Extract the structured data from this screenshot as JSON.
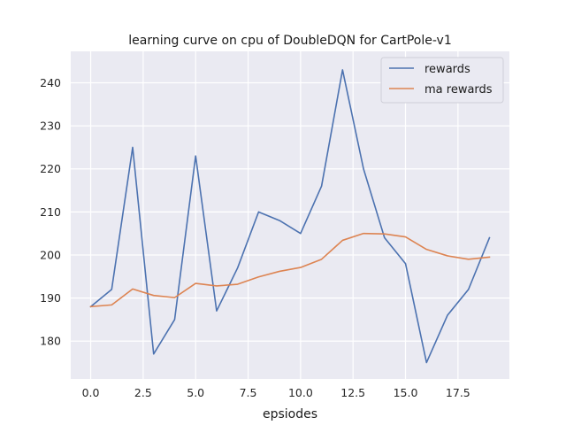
{
  "chart_data": {
    "type": "line",
    "title": "learning curve on cpu of DoubleDQN for CartPole-v1",
    "xlabel": "epsiodes",
    "ylabel": "",
    "x": [
      0,
      1,
      2,
      3,
      4,
      5,
      6,
      7,
      8,
      9,
      10,
      11,
      12,
      13,
      14,
      15,
      16,
      17,
      18,
      19
    ],
    "xlim": [
      -0.95,
      19.95
    ],
    "ylim": [
      171.2,
      247.3
    ],
    "xticks": [
      0.0,
      2.5,
      5.0,
      7.5,
      10.0,
      12.5,
      15.0,
      17.5
    ],
    "xtick_labels": [
      "0.0",
      "2.5",
      "5.0",
      "7.5",
      "10.0",
      "12.5",
      "15.0",
      "17.5"
    ],
    "yticks": [
      180,
      190,
      200,
      210,
      220,
      230,
      240
    ],
    "ytick_labels": [
      "180",
      "190",
      "200",
      "210",
      "220",
      "230",
      "240"
    ],
    "grid": true,
    "legend": "top-right",
    "series": [
      {
        "name": "rewards",
        "color": "#4c72b0",
        "values": [
          188,
          192,
          225,
          177,
          185,
          223,
          187,
          197,
          210,
          208,
          205,
          216,
          243,
          220,
          204,
          198,
          175,
          186,
          192,
          204
        ]
      },
      {
        "name": "ma rewards",
        "color": "#dd8452",
        "values": [
          188,
          188.4,
          192.1,
          190.6,
          190.1,
          193.4,
          192.8,
          193.2,
          194.9,
          196.2,
          197.1,
          199.0,
          203.4,
          205.0,
          204.9,
          204.2,
          201.3,
          199.8,
          199.0,
          199.5
        ]
      }
    ]
  }
}
